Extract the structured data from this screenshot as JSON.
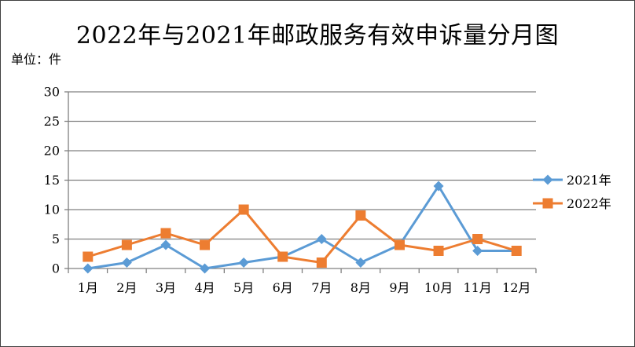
{
  "chart_data": {
    "type": "line",
    "title": "2022年与2021年邮政服务有效申诉量分月图",
    "unit_label": "单位：件",
    "categories": [
      "1月",
      "2月",
      "3月",
      "4月",
      "5月",
      "6月",
      "7月",
      "8月",
      "9月",
      "10月",
      "11月",
      "12月"
    ],
    "series": [
      {
        "name": "2021年",
        "values": [
          0,
          1,
          4,
          0,
          1,
          2,
          5,
          1,
          4,
          14,
          3,
          3
        ],
        "color": "#5b9bd5",
        "marker": "diamond"
      },
      {
        "name": "2022年",
        "values": [
          2,
          4,
          6,
          4,
          10,
          2,
          1,
          9,
          4,
          3,
          5,
          3
        ],
        "color": "#ed7d31",
        "marker": "square"
      }
    ],
    "ylim": [
      0,
      30
    ],
    "yticks": [
      0,
      5,
      10,
      15,
      20,
      25,
      30
    ],
    "grid": true,
    "legend_position": "right"
  }
}
